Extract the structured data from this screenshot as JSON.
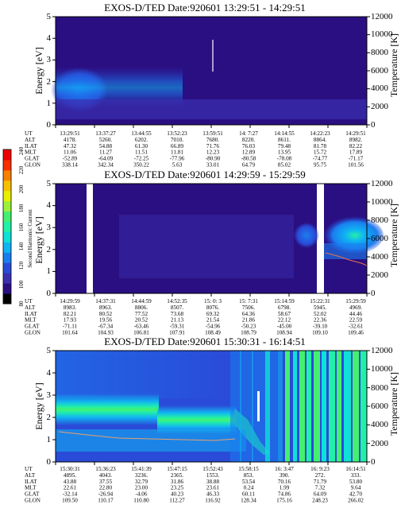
{
  "colors": {
    "background": "#2a0f82",
    "foreground": "#000000"
  },
  "colorbar": {
    "label": "Second Harmonic Current",
    "ticks": [
      "80",
      "100",
      "120",
      "140",
      "160",
      "180",
      "200",
      "220",
      "240"
    ],
    "colors": [
      "#000000",
      "#2a0f82",
      "#3a2fb0",
      "#2a4bd8",
      "#1a7ef0",
      "#10b4f2",
      "#0fe0d8",
      "#22f0a8",
      "#44f070",
      "#9cf23a",
      "#e8f000",
      "#f8c000",
      "#f88000",
      "#f83000",
      "#ee0000"
    ]
  },
  "chart_data": [
    {
      "type": "heatmap",
      "title": "EXOS-D/TED   Date:920601   13:29:51 - 14:29:51",
      "ylabel": "Energy [eV]",
      "y2label": "Temperature [K]",
      "yticks": [
        "0",
        "1",
        "2",
        "3",
        "4",
        "5"
      ],
      "y2ticks": [
        "0",
        "2000",
        "4000",
        "6000",
        "8000",
        "10000",
        "12000"
      ],
      "ylim": [
        0,
        5
      ],
      "y2lim": [
        0,
        12000
      ],
      "table": {
        "labels": [
          "UT",
          "ALT",
          "ILAT",
          "MLT",
          "GLAT",
          "GLON"
        ],
        "columns": [
          [
            "13:29:51",
            "4178.",
            "47.32",
            "11.06",
            "-52.89",
            "338.14"
          ],
          [
            "13:37:27",
            "5260.",
            "54.88",
            "11.27",
            "-64.09",
            "342.34"
          ],
          [
            "13:44:55",
            "6202.",
            "61.30",
            "11.51",
            "-72.25",
            "350.22"
          ],
          [
            "13:52:23",
            "7010.",
            "66.89",
            "11.81",
            "-77.96",
            "5.63"
          ],
          [
            "13:59:51",
            "7680.",
            "71.76",
            "12.23",
            "-80.90",
            "33.01"
          ],
          [
            "14: 7:27",
            "8220.",
            "76.03",
            "12.89",
            "-80.58",
            "64.79"
          ],
          [
            "14:14:55",
            "8611.",
            "79.48",
            "13.95",
            "-78.08",
            "85.02"
          ],
          [
            "14:22:23",
            "8864.",
            "81.78",
            "15.72",
            "-74.77",
            "95.75"
          ],
          [
            "14:29:51",
            "8982.",
            "82.22",
            "17.89",
            "-71.17",
            "101.56"
          ]
        ]
      }
    },
    {
      "type": "heatmap",
      "title": "EXOS-D/TED   Date:920601   14:29:59 - 15:29:59",
      "ylabel": "Energy [eV]",
      "y2label": "Temperature [K]",
      "yticks": [
        "0",
        "1",
        "2",
        "3",
        "4",
        "5"
      ],
      "y2ticks": [
        "0",
        "2000",
        "4000",
        "6000",
        "8000",
        "10000",
        "12000"
      ],
      "ylim": [
        0,
        5
      ],
      "y2lim": [
        0,
        12000
      ],
      "table": {
        "labels": [
          "UT",
          "ALT",
          "ILAT",
          "MLT",
          "GLAT",
          "GLON"
        ],
        "columns": [
          [
            "14:29:59",
            "8983.",
            "82.21",
            "17.93",
            "-71.11",
            "101.64"
          ],
          [
            "14:37:31",
            "8963.",
            "80.52",
            "19.56",
            "-67.34",
            "104.93"
          ],
          [
            "14:44:59",
            "8806.",
            "77.52",
            "20.52",
            "-63.46",
            "106.81"
          ],
          [
            "14:52:35",
            "8507.",
            "73.68",
            "21.13",
            "-59.31",
            "107.91"
          ],
          [
            "15: 0: 3",
            "8076.",
            "69.32",
            "21.54",
            "-54.96",
            "108.49"
          ],
          [
            "15: 7:31",
            "7506.",
            "64.36",
            "21.86",
            "-50.23",
            "108.79"
          ],
          [
            "15:14:59",
            "6798.",
            "58.67",
            "22.12",
            "-45.00",
            "108.94"
          ],
          [
            "15:22:31",
            "5945.",
            "52.02",
            "22.36",
            "-39.10",
            "109.10"
          ],
          [
            "15:29:59",
            "4969.",
            "44.46",
            "22.59",
            "-32.61",
            "109.46"
          ]
        ]
      }
    },
    {
      "type": "heatmap",
      "title": "EXOS-D/TED   Date:920601   15:30:31 - 16:14:51",
      "ylabel": "Energy [eV]",
      "y2label": "Temperature [K]",
      "yticks": [
        "0",
        "1",
        "2",
        "3",
        "4",
        "5"
      ],
      "y2ticks": [
        "0",
        "2000",
        "4000",
        "6000",
        "8000",
        "10000",
        "12000"
      ],
      "ylim": [
        0,
        5
      ],
      "y2lim": [
        0,
        12000
      ],
      "table": {
        "labels": [
          "UT",
          "ALT",
          "ILAT",
          "MLT",
          "GLAT",
          "GLON"
        ],
        "columns": [
          [
            "15:30:31",
            "4895.",
            "43.88",
            "22.61",
            "-32.14",
            "109.50"
          ],
          [
            "15:36:23",
            "4043.",
            "37.55",
            "22.80",
            "-26.94",
            "110.17"
          ],
          [
            "15:41:39",
            "3236.",
            "32.79",
            "23.00",
            "-4.06",
            "110.80"
          ],
          [
            "15:47:15",
            "2365.",
            "31.86",
            "23.25",
            "40.23",
            "112.27"
          ],
          [
            "15:52:43",
            "1553.",
            "38.88",
            "23.61",
            "46.33",
            "116.92"
          ],
          [
            "15:58:15",
            "853.",
            "53.54",
            "0.24",
            "60.11",
            "128.34"
          ],
          [
            "16: 3:47",
            "390.",
            "70.16",
            "1.99",
            "74.86",
            "175.16"
          ],
          [
            "16: 9:23",
            "272.",
            "71.79",
            "7.32",
            "64.09",
            "248.23"
          ],
          [
            "16:14:51",
            "333.",
            "53.80",
            "9.64",
            "42.70",
            "266.02"
          ]
        ]
      }
    }
  ]
}
